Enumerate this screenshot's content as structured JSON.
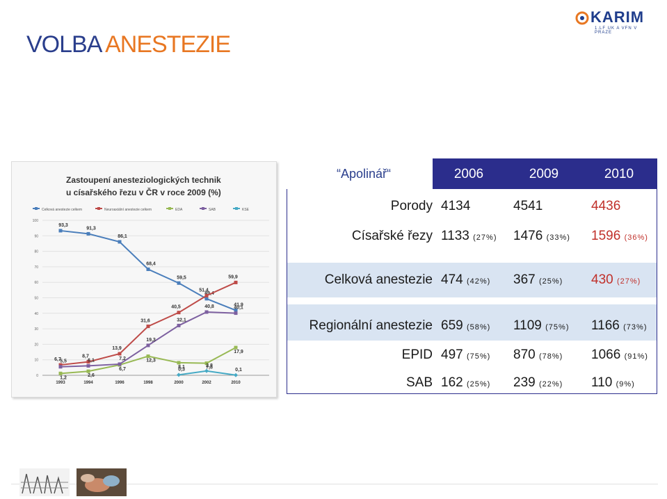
{
  "header": {
    "title_part1": "VOLBA",
    "title_part2": "ANESTEZIE",
    "logo_text": "KARIM",
    "logo_sub": "1.LF UK A VFN V PRAZE"
  },
  "table": {
    "hospital": "Apolinář",
    "years": [
      "2006",
      "2009",
      "2010"
    ],
    "rows": [
      {
        "label": "Porody",
        "cells": [
          {
            "v": "4134",
            "p": ""
          },
          {
            "v": "4541",
            "p": ""
          },
          {
            "v": "4436",
            "p": ""
          }
        ]
      },
      {
        "label": "Císařské řezy",
        "cells": [
          {
            "v": "1133",
            "p": "(27%)"
          },
          {
            "v": "1476",
            "p": "(33%)"
          },
          {
            "v": "1596",
            "p": "(36%)"
          }
        ]
      },
      {
        "label": "Celková anestezie",
        "cells": [
          {
            "v": "474",
            "p": "(42%)"
          },
          {
            "v": "367",
            "p": "(25%)"
          },
          {
            "v": "430",
            "p": "(27%)"
          }
        ]
      },
      {
        "label": "Regionální anestezie",
        "cells": [
          {
            "v": "659",
            "p": "(58%)"
          },
          {
            "v": "1109",
            "p": "(75%)"
          },
          {
            "v": "1166",
            "p": "(73%)"
          }
        ]
      },
      {
        "label": "EPID",
        "cells": [
          {
            "v": "497",
            "p": "(75%)"
          },
          {
            "v": "870",
            "p": "(78%)"
          },
          {
            "v": "1066",
            "p": "(91%)"
          }
        ]
      },
      {
        "label": "SAB",
        "cells": [
          {
            "v": "162",
            "p": "(25%)"
          },
          {
            "v": "239",
            "p": "(22%)"
          },
          {
            "v": "110",
            "p": "(9%)"
          }
        ]
      }
    ]
  },
  "chart_data": {
    "type": "line",
    "title": "Zastoupení anesteziologických technik u císařského řezu v ČR v roce 2009 (%)",
    "x": [
      "1993",
      "1994",
      "1996",
      "1998",
      "2000",
      "2002",
      "2010"
    ],
    "ylim": [
      0,
      100
    ],
    "yticks": [
      0,
      10,
      20,
      30,
      40,
      50,
      60,
      70,
      80,
      90,
      100
    ],
    "series": [
      {
        "name": "Celková anestezie celkem",
        "color": "#4a7ebb",
        "values": [
          93.3,
          91.3,
          86.1,
          68.4,
          59.5,
          49.4,
          41.9
        ]
      },
      {
        "name": "Neuroaxiální anestezie celkem",
        "color": "#be4b48",
        "values": [
          6.7,
          8.7,
          13.9,
          31.6,
          40.5,
          51.4,
          59.9
        ]
      },
      {
        "name": "EDA",
        "color": "#98b954",
        "values": [
          1.2,
          2.6,
          6.7,
          12.3,
          8.1,
          7.8,
          17.9
        ]
      },
      {
        "name": "SAB",
        "color": "#7d60a0",
        "values": [
          5.5,
          6.1,
          7.2,
          19.3,
          32.1,
          40.8,
          40.1
        ]
      },
      {
        "name": "KSE",
        "color": "#46aac5",
        "values": [
          null,
          null,
          null,
          null,
          0.3,
          2.8,
          0.1
        ]
      }
    ],
    "legend_position": "top"
  }
}
